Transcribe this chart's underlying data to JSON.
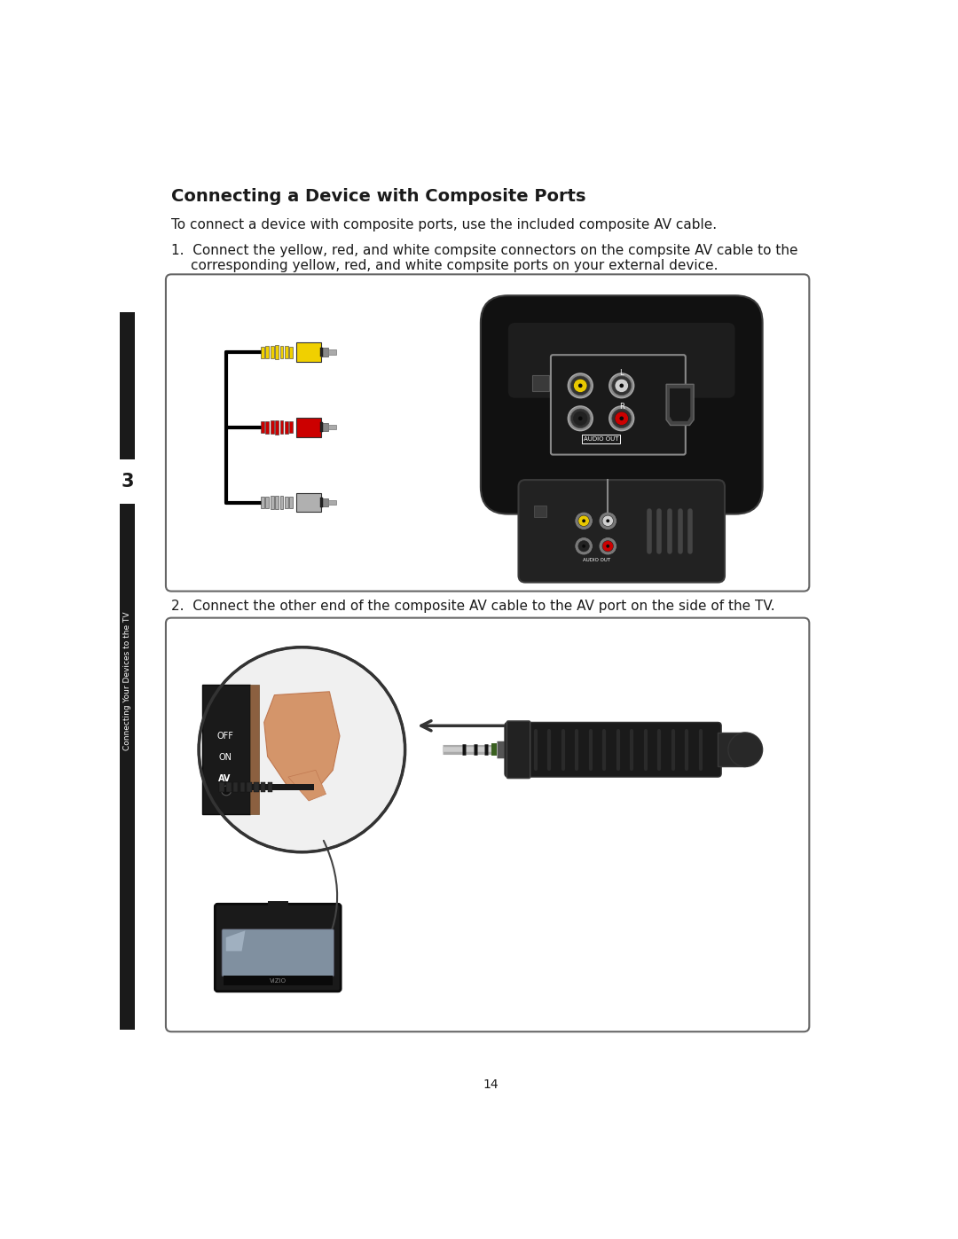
{
  "title": "Connecting a Device with Composite Ports",
  "intro_text": "To connect a device with composite ports, use the included composite AV cable.",
  "step1_line1": "1.  Connect the yellow, red, and white compsite connectors on the compsite AV cable to the",
  "step1_line2": "corresponding yellow, red, and white compsite ports on your external device.",
  "step2_text": "2.  Connect the other end of the composite AV cable to the AV port on the side of the TV.",
  "page_number": "14",
  "bg_color": "#ffffff",
  "text_color": "#1a1a1a",
  "sidebar_color": "#1a1a1a",
  "sidebar_text": "Connecting Your Devices to the TV",
  "sidebar_number": "3",
  "box_border_color": "#666666",
  "connector_yellow": "#f0d000",
  "connector_red": "#cc0000",
  "connector_silver": "#b0b0b0",
  "device_dark": "#1e1e1e",
  "device_medium": "#2e2e2e"
}
